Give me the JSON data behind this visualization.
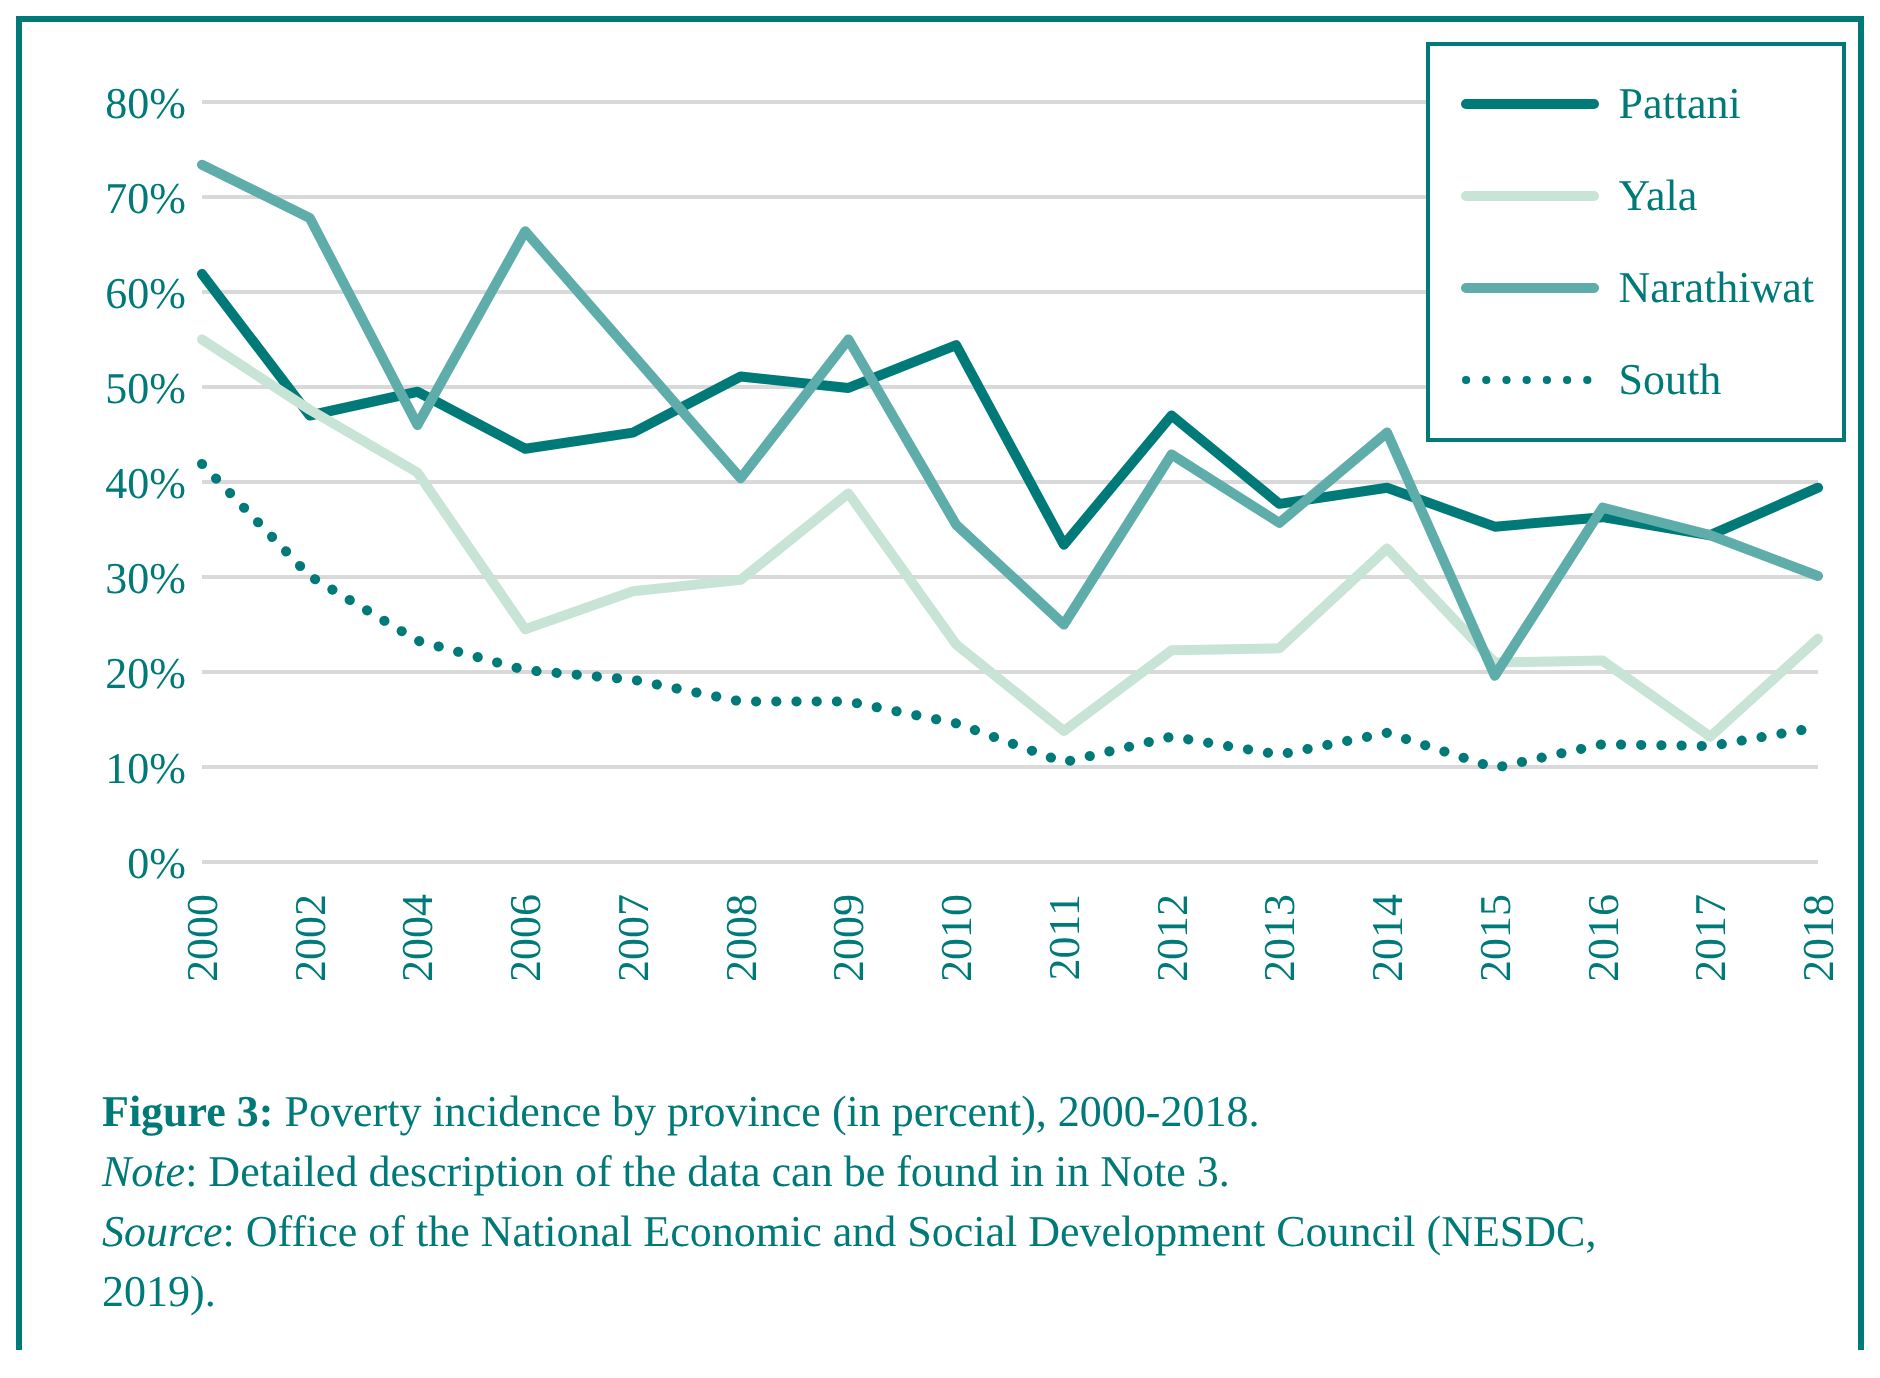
{
  "chart_data": {
    "type": "line",
    "title": "Figure 3: Poverty incidence by province (in percent), 2000-2018.",
    "annotations": [
      "Note: Detailed description of the data can be found in in Note 3.",
      "Source: Office of the National Economic and Social Development Council (NESDC, 2019)."
    ],
    "categories": [
      "2000",
      "2002",
      "2004",
      "2006",
      "2007",
      "2008",
      "2009",
      "2010",
      "2011",
      "2012",
      "2013",
      "2014",
      "2015",
      "2016",
      "2017",
      "2018"
    ],
    "series": [
      {
        "name": "Pattani",
        "color": "#007a78",
        "line_style": "solid",
        "values": [
          61.9,
          47,
          49.5,
          43.5,
          45.2,
          51.1,
          49.9,
          54.4,
          33.4,
          47,
          37.7,
          39.4,
          35.3,
          36.3,
          34.4,
          39.4
        ]
      },
      {
        "name": "Yala",
        "color": "#c8e4d6",
        "line_style": "solid",
        "values": [
          55,
          47.6,
          41,
          24.5,
          28.5,
          29.7,
          38.8,
          22.9,
          13.8,
          22.3,
          22.5,
          33,
          21,
          21.2,
          13.2,
          23.5
        ]
      },
      {
        "name": "Narathiwat",
        "color": "#5fadaa",
        "line_style": "solid",
        "values": [
          73.4,
          67.8,
          46,
          66.4,
          53.4,
          40.4,
          55,
          35.5,
          25,
          42.9,
          35.7,
          45.2,
          19.6,
          37.3,
          34.4,
          30.1
        ]
      },
      {
        "name": "South",
        "color": "#007a78",
        "line_style": "dotted",
        "values": [
          41.9,
          30.1,
          23.3,
          20.2,
          19.2,
          16.9,
          16.9,
          14.6,
          10.5,
          13.2,
          11.3,
          13.6,
          9.9,
          12.4,
          12.2,
          14.2
        ]
      }
    ],
    "ylim": [
      0,
      80
    ],
    "yticks": [
      {
        "value": 0,
        "label": "0%"
      },
      {
        "value": 10,
        "label": "10%"
      },
      {
        "value": 20,
        "label": "20%"
      },
      {
        "value": 30,
        "label": "30%"
      },
      {
        "value": 40,
        "label": "40%"
      },
      {
        "value": 50,
        "label": "50%"
      },
      {
        "value": 60,
        "label": "60%"
      },
      {
        "value": 70,
        "label": "70%"
      },
      {
        "value": 80,
        "label": "80%"
      }
    ],
    "grid": "y",
    "legend": "top right",
    "marker": "none"
  }
}
